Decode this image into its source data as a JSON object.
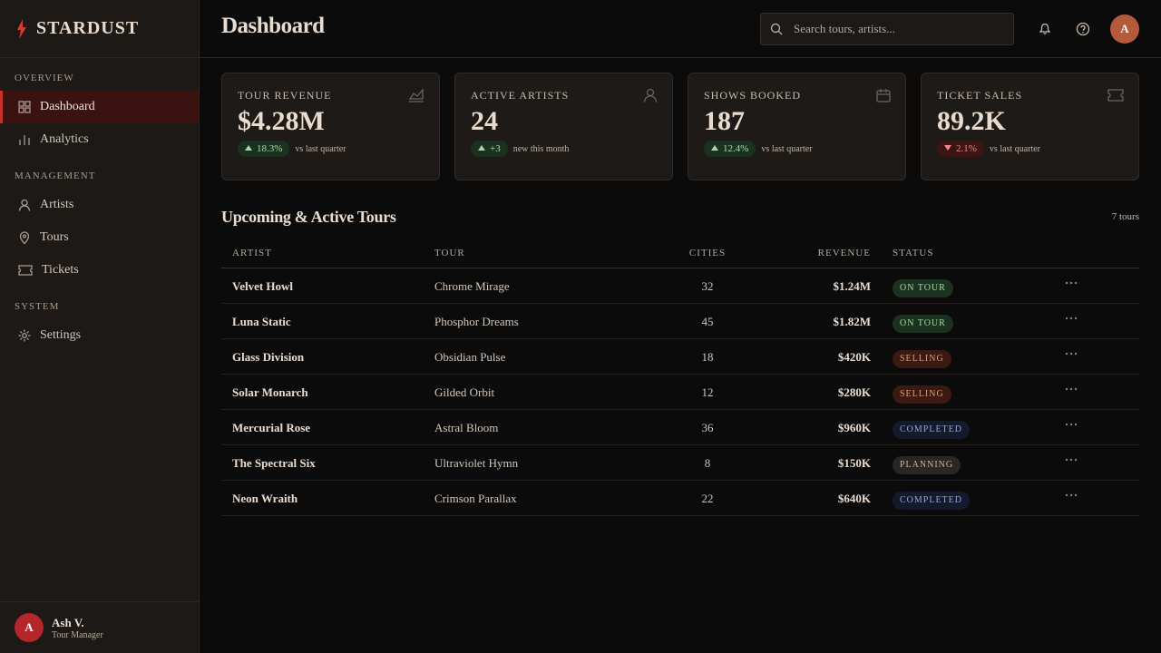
{
  "brand": "STARDUST",
  "header": {
    "title": "Dashboard",
    "search_placeholder": "Search tours, artists...",
    "avatar": "A"
  },
  "nav": [
    {
      "section": "OVERVIEW",
      "items": [
        "Dashboard",
        "Analytics"
      ]
    },
    {
      "section": "MANAGEMENT",
      "items": [
        "Artists",
        "Tours",
        "Tickets"
      ]
    },
    {
      "section": "SYSTEM",
      "items": [
        "Settings"
      ]
    }
  ],
  "user": {
    "avatar": "A",
    "name": "Ash V.",
    "role": "Tour Manager"
  },
  "stats": [
    {
      "label": "TOUR REVENUE",
      "value": "$4.28M",
      "change": "18.3%",
      "direction": "up",
      "note": "vs last quarter"
    },
    {
      "label": "ACTIVE ARTISTS",
      "value": "24",
      "change": "+3",
      "direction": "up",
      "note": "new this month"
    },
    {
      "label": "SHOWS BOOKED",
      "value": "187",
      "change": "12.4%",
      "direction": "up",
      "note": "vs last quarter"
    },
    {
      "label": "TICKET SALES",
      "value": "89.2K",
      "change": "2.1%",
      "direction": "down",
      "note": "vs last quarter"
    }
  ],
  "table": {
    "title": "Upcoming & Active Tours",
    "count": "7 tours",
    "columns": [
      "ARTIST",
      "TOUR",
      "CITIES",
      "REVENUE",
      "STATUS"
    ],
    "rows": [
      [
        "Velvet Howl",
        "Chrome Mirage",
        32,
        "$1.24M",
        "ON TOUR"
      ],
      [
        "Luna Static",
        "Phosphor Dreams",
        45,
        "$1.82M",
        "ON TOUR"
      ],
      [
        "Glass Division",
        "Obsidian Pulse",
        18,
        "$420K",
        "SELLING"
      ],
      [
        "Solar Monarch",
        "Gilded Orbit",
        12,
        "$280K",
        "SELLING"
      ],
      [
        "Mercurial Rose",
        "Astral Bloom",
        36,
        "$960K",
        "COMPLETED"
      ],
      [
        "The Spectral Six",
        "Ultraviolet Hymn",
        8,
        "$150K",
        "PLANNING"
      ],
      [
        "Neon Wraith",
        "Crimson Parallax",
        22,
        "$640K",
        "COMPLETED"
      ]
    ]
  }
}
